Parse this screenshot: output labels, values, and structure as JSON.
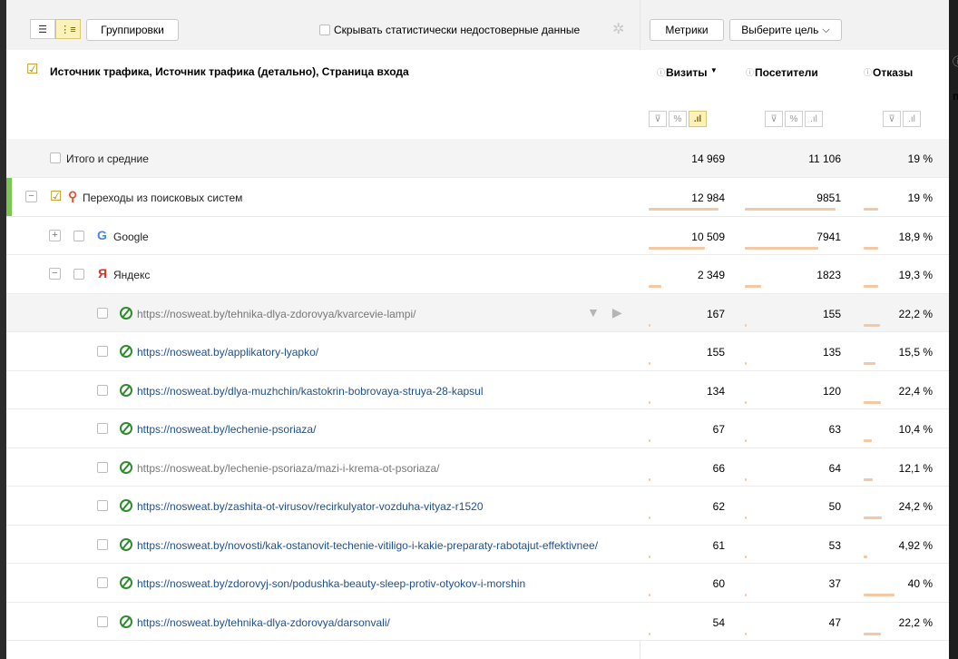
{
  "toolbar": {
    "grouping_button": "Группировки",
    "hide_unreliable_label": "Скрывать статистически недостоверные данные",
    "metrics_button": "Метрики",
    "goal_select": "Выберите цель",
    "goal_select_arrow": "⌵",
    "mode_list_icon": "list-icon",
    "mode_tree_icon": "tree-icon",
    "gear_icon": "gear-icon"
  },
  "table": {
    "dimension_header": "Источник трафика, Источник трафика (детально), Страница входа",
    "metrics": [
      {
        "label": "Визиты",
        "sort": "▼"
      },
      {
        "label": "Посетители",
        "sort": ""
      },
      {
        "label": "Отказы",
        "sort": ""
      }
    ],
    "overflow_header_letter": "п",
    "total_row": {
      "label": "Итого и средние",
      "values": [
        "14 969",
        "11 106",
        "19 %"
      ]
    },
    "rows": [
      {
        "label": "Переходы из поисковых систем",
        "values": [
          "12 984",
          "9851",
          "19 %"
        ],
        "expander": "−",
        "icon": "magnifier-icon",
        "bars": [
          0.87,
          0.89,
          0.19
        ]
      },
      {
        "label": "Google",
        "values": [
          "10 509",
          "7941",
          "18,9 %"
        ],
        "expander": "+",
        "icon": "google-icon",
        "bars": [
          0.7,
          0.72,
          0.19
        ]
      },
      {
        "label": "Яндекс",
        "values": [
          "2 349",
          "1823",
          "19,3 %"
        ],
        "expander": "−",
        "icon": "yandex-icon",
        "bars": [
          0.16,
          0.16,
          0.19
        ]
      },
      {
        "label": "https://nosweat.by/tehnika-dlya-zdorovya/kvarcevie-lampi/",
        "values": [
          "167",
          "155",
          "22,2 %"
        ],
        "bars": [
          0.011,
          0.014,
          0.22
        ]
      },
      {
        "label": "https://nosweat.by/applikatory-lyapko/",
        "values": [
          "155",
          "135",
          "15,5 %"
        ],
        "bars": [
          0.01,
          0.012,
          0.155
        ]
      },
      {
        "label": "https://nosweat.by/dlya-muzhchin/kastokrin-bobrovaya-struya-28-kapsul",
        "values": [
          "134",
          "120",
          "22,4 %"
        ],
        "bars": [
          0.009,
          0.011,
          0.224
        ]
      },
      {
        "label": "https://nosweat.by/lechenie-psoriaza/",
        "values": [
          "67",
          "63",
          "10,4 %"
        ],
        "bars": [
          0.004,
          0.006,
          0.104
        ]
      },
      {
        "label": "https://nosweat.by/lechenie-psoriaza/mazi-i-krema-ot-psoriaza/",
        "values": [
          "66",
          "64",
          "12,1 %"
        ],
        "bars": [
          0.004,
          0.006,
          0.121
        ]
      },
      {
        "label": "https://nosweat.by/zashita-ot-virusov/recirkulyator-vozduha-vityaz-r1520",
        "values": [
          "62",
          "50",
          "24,2 %"
        ],
        "bars": [
          0.004,
          0.005,
          0.242
        ]
      },
      {
        "label": "https://nosweat.by/novosti/kak-ostanovit-techenie-vitiligo-i-kakie-preparaty-rabotajut-effektivnee/",
        "values": [
          "61",
          "53",
          "4,92 %"
        ],
        "bars": [
          0.004,
          0.005,
          0.049
        ]
      },
      {
        "label": "https://nosweat.by/zdorovyj-son/podushka-beauty-sleep-protiv-otyokov-i-morshin",
        "values": [
          "60",
          "37",
          "40 %"
        ],
        "bars": [
          0.004,
          0.003,
          0.4
        ]
      },
      {
        "label": "https://nosweat.by/tehnika-dlya-zdorovya/darsonvali/",
        "values": [
          "54",
          "47",
          "22,2 %"
        ],
        "bars": [
          0.004,
          0.004,
          0.222
        ]
      }
    ]
  }
}
